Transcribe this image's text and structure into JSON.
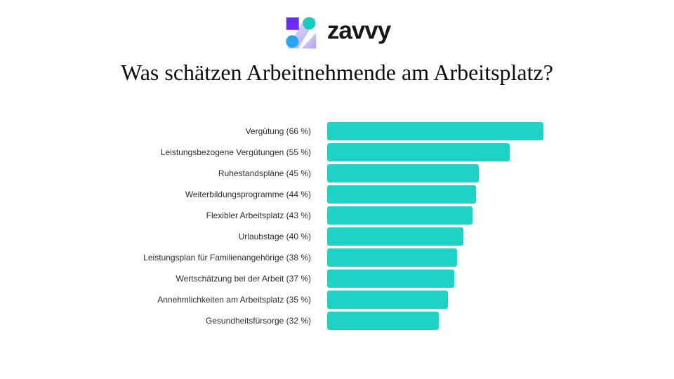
{
  "header": {
    "brand_name": "zavvy",
    "logo_colors": {
      "square": "#6a2cf5",
      "circle_top": "#16cdbd",
      "circle_bottom": "#27a4f2",
      "z_gradient_start": "#e7e8fc",
      "z_gradient_end": "#b29ef0"
    }
  },
  "title": "Was schätzen Arbeitnehmende am Arbeitsplatz?",
  "chart_data": {
    "type": "bar",
    "orientation": "horizontal",
    "title": "Was schätzen Arbeitnehmende am Arbeitsplatz?",
    "categories": [
      "Vergütung",
      "Leistungsbezogene Vergütungen",
      "Ruhestandspläne",
      "Weiterbildungsprogramme",
      "Flexibler Arbeitsplatz",
      "Urlaubstage",
      "Leistungsplan für Familienangehörige",
      "Wertschätzung bei der Arbeit",
      "Annehmlichkeiten am Arbeitsplatz",
      "Gesundheitsfürsorge"
    ],
    "values": [
      66,
      55,
      45,
      44,
      43,
      40,
      38,
      37,
      35,
      32
    ],
    "unit": "%",
    "label_format": "{category} ({value} %)",
    "bar_color": "#1ed3c6",
    "label_color": "#2b2d30",
    "value_axis": {
      "min": 0,
      "max": 70,
      "ticks_visible": false
    },
    "gridlines": false,
    "legend": false,
    "sort": "descending"
  }
}
